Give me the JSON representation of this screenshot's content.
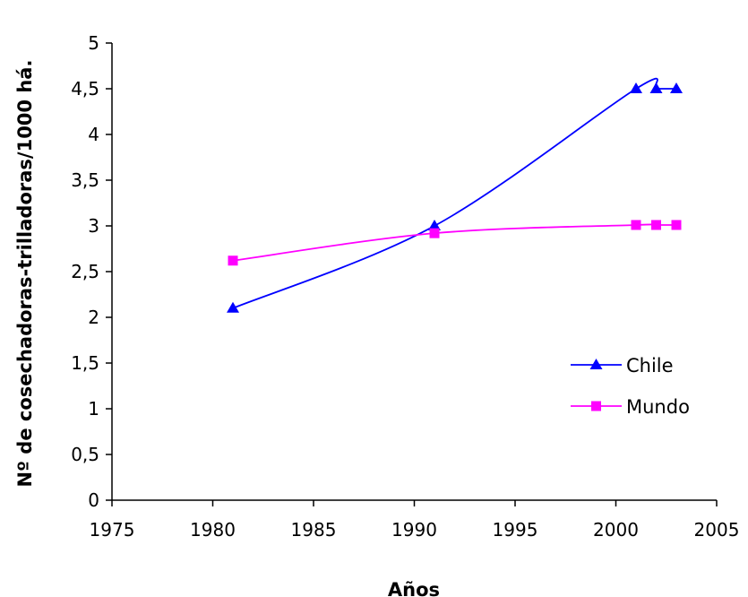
{
  "chart_data": {
    "type": "line",
    "title": "",
    "xlabel": "Años",
    "ylabel": "Nº de cosechadoras-trilladoras/1000 há.",
    "xlim": [
      1975,
      2005
    ],
    "ylim": [
      0,
      5
    ],
    "xticks": [
      1975,
      1980,
      1985,
      1990,
      1995,
      2000,
      2005
    ],
    "yticks": [
      0,
      0.5,
      1,
      1.5,
      2,
      2.5,
      3,
      3.5,
      4,
      4.5,
      5
    ],
    "xtick_labels": [
      "1975",
      "1980",
      "1985",
      "1990",
      "1995",
      "2000",
      "2005"
    ],
    "ytick_labels": [
      "0",
      "0,5",
      "1",
      "1,5",
      "2",
      "2,5",
      "3",
      "3,5",
      "4",
      "4,5",
      "5"
    ],
    "grid": false,
    "legend_position": "right",
    "series": [
      {
        "name": "Chile",
        "color": "#0000ff",
        "marker": "triangle",
        "x": [
          1981,
          1991,
          2001,
          2002,
          2003
        ],
        "values": [
          2.1,
          3.0,
          4.5,
          4.5,
          4.5
        ]
      },
      {
        "name": "Mundo",
        "color": "#ff00ff",
        "marker": "square",
        "x": [
          1981,
          1991,
          2001,
          2002,
          2003
        ],
        "values": [
          2.62,
          2.92,
          3.01,
          3.01,
          3.01
        ]
      }
    ]
  }
}
